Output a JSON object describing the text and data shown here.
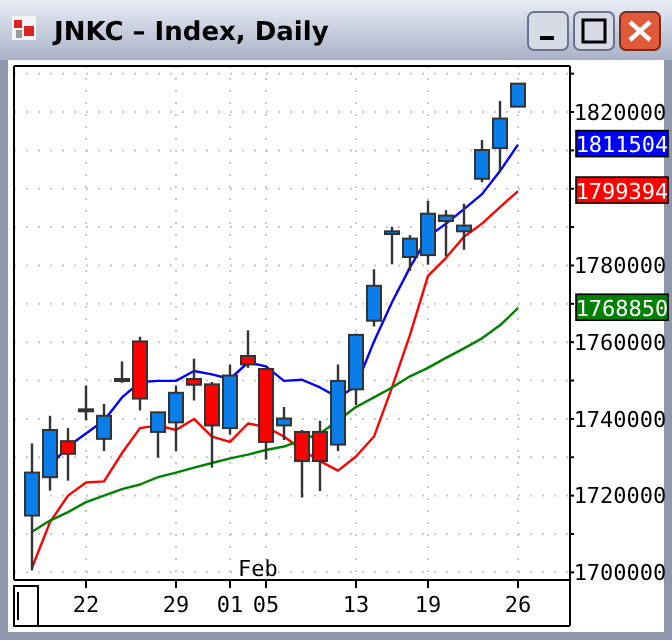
{
  "chart_data": {
    "type": "candlestick",
    "title": "JNKC – Index, Daily",
    "categories": [
      null,
      null,
      null,
      "22",
      null,
      null,
      null,
      null,
      "29",
      null,
      null,
      "01",
      null,
      "05",
      null,
      null,
      null,
      null,
      "13",
      null,
      null,
      null,
      "19",
      null,
      null,
      null,
      null,
      "26"
    ],
    "ohlc": [
      [
        1714800,
        1733600,
        1700500,
        1726000
      ],
      [
        1724800,
        1740800,
        1721300,
        1737100
      ],
      [
        1734200,
        1737600,
        1723900,
        1730900
      ],
      [
        1742000,
        1748700,
        1739600,
        1742500
      ],
      [
        1734800,
        1743900,
        1731600,
        1740800
      ],
      [
        1749900,
        1755000,
        1749400,
        1750400
      ],
      [
        1760200,
        1761400,
        1742200,
        1745300
      ],
      [
        1736600,
        1741900,
        1729900,
        1741700
      ],
      [
        1739100,
        1748700,
        1731600,
        1746800
      ],
      [
        1750400,
        1755700,
        1744800,
        1748900
      ],
      [
        1749000,
        1749600,
        1727300,
        1738300
      ],
      [
        1737600,
        1754200,
        1735900,
        1751300
      ],
      [
        1756400,
        1763100,
        1753300,
        1754200
      ],
      [
        1753000,
        1753300,
        1729400,
        1734000
      ],
      [
        1738300,
        1743100,
        1734500,
        1740100
      ],
      [
        1736600,
        1737100,
        1719500,
        1729000
      ],
      [
        1736600,
        1739500,
        1721200,
        1729000
      ],
      [
        1733300,
        1754200,
        1731600,
        1749900
      ],
      [
        1747700,
        1762200,
        1743600,
        1761900
      ],
      [
        1765600,
        1779000,
        1764100,
        1774700
      ],
      [
        1788200,
        1790100,
        1780300,
        1788900
      ],
      [
        1782200,
        1787900,
        1778600,
        1787000
      ],
      [
        1782700,
        1796900,
        1780200,
        1793500
      ],
      [
        1791600,
        1794400,
        1782400,
        1793000
      ],
      [
        1788900,
        1796100,
        1784100,
        1790400
      ],
      [
        1802600,
        1812700,
        1801700,
        1810100
      ],
      [
        1810600,
        1822900,
        1804600,
        1818300
      ],
      [
        1821400,
        1827400,
        1821400,
        1827400
      ]
    ],
    "colors": [
      "#0a7de8",
      "#0a7de8",
      "#ff0000",
      "#0a7de8",
      "#0a7de8",
      "#0a7de8",
      "#ff0000",
      "#0a7de8",
      "#0a7de8",
      "#ff0000",
      "#ff0000",
      "#0a7de8",
      "#ff0000",
      "#ff0000",
      "#0a7de8",
      "#ff0000",
      "#ff0000",
      "#0a7de8",
      "#0a7de8",
      "#0a7de8",
      "#0a7de8",
      "#0a7de8",
      "#0a7de8",
      "#0a7de8",
      "#0a7de8",
      "#0a7de8",
      "#0a7de8",
      "#0a7de8"
    ],
    "series": [
      {
        "type": "line",
        "color": "#0000ff",
        "values": [
          null,
          1727700,
          1732800,
          1736200,
          1739600,
          1745600,
          1749600,
          1749900,
          1749900,
          1752500,
          1751600,
          1750400,
          1754700,
          1753700,
          1749900,
          1750200,
          1748200,
          1745600,
          1748500,
          1760200,
          1770400,
          1779500,
          1787500,
          1790900,
          1794700,
          1798600,
          1804600,
          1811504
        ]
      },
      {
        "type": "line",
        "color": "#ff0000",
        "values": [
          1701200,
          1713100,
          1720000,
          1723400,
          1723700,
          1731100,
          1737600,
          1738300,
          1737100,
          1740000,
          1735400,
          1734000,
          1738800,
          1737900,
          1735400,
          1731900,
          1729000,
          1726500,
          1730200,
          1735400,
          1748200,
          1761900,
          1777300,
          1782000,
          1787500,
          1790900,
          1795200,
          1799394
        ]
      },
      {
        "type": "line",
        "color": "#008000",
        "values": [
          1710600,
          1713500,
          1715700,
          1718300,
          1720000,
          1721700,
          1722900,
          1724800,
          1726000,
          1727300,
          1728500,
          1729700,
          1730700,
          1731900,
          1732800,
          1734500,
          1736200,
          1739600,
          1743100,
          1745600,
          1748200,
          1751100,
          1753300,
          1755900,
          1758400,
          1761000,
          1764400,
          1768850
        ]
      }
    ],
    "ylim": [
      1698000,
      1832000
    ],
    "yticks": [
      1700000,
      {
        "value": 1710000,
        "label": null
      },
      1720000,
      {
        "value": 1730000,
        "label": null
      },
      1740000,
      {
        "value": 1750000,
        "label": null
      },
      1760000,
      {
        "value": 1770000,
        "label": null
      },
      1780000,
      {
        "value": 1790000,
        "label": null
      },
      {
        "value": 1800000,
        "label": null
      },
      {
        "value": 1810000,
        "label": null
      },
      1820000,
      {
        "value": 1830000,
        "label": null
      }
    ],
    "grid": true,
    "annotations": [
      "Feb",
      "1811504",
      "1799394",
      "1768850"
    ]
  }
}
